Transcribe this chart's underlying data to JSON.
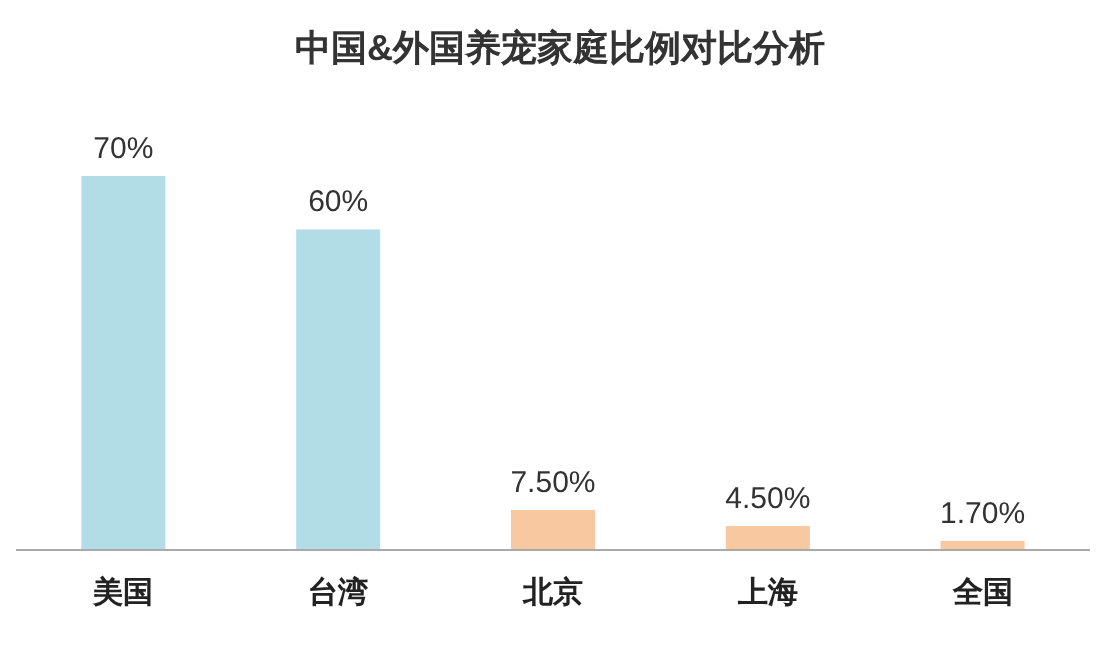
{
  "chart_data": {
    "type": "bar",
    "title": "中国&外国养宠家庭比例对比分析",
    "categories": [
      "美国",
      "台湾",
      "北京",
      "上海",
      "全国"
    ],
    "values": [
      70,
      60,
      7.5,
      4.5,
      1.7
    ],
    "value_labels": [
      "70%",
      "60%",
      "7.50%",
      "4.50%",
      "1.70%"
    ],
    "colors": [
      "#b3dde6",
      "#b3dde6",
      "#f8c8a0",
      "#f8c8a0",
      "#f8c8a0"
    ]
  }
}
